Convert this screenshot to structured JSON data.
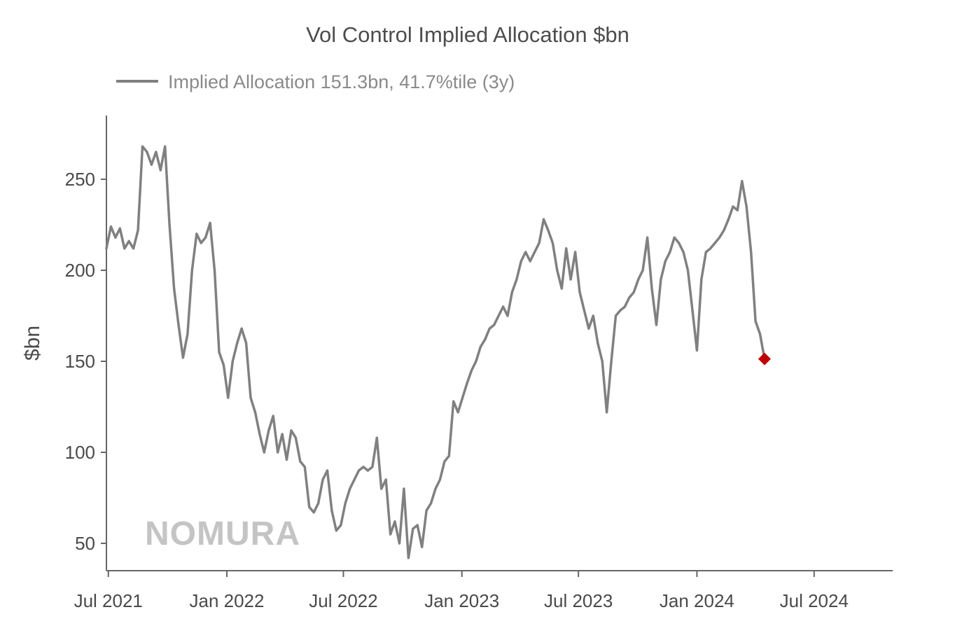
{
  "chart_data": {
    "type": "line",
    "title": "Vol Control Implied Allocation $bn",
    "ylabel": "$bn",
    "xlabel": "",
    "ylim": [
      35,
      285
    ],
    "yticks": [
      50,
      100,
      150,
      200,
      250
    ],
    "xlim": [
      "2021-06-28",
      "2024-10-31"
    ],
    "xticks": [
      {
        "date": "2021-07-01",
        "label": "Jul 2021"
      },
      {
        "date": "2022-01-01",
        "label": "Jan 2022"
      },
      {
        "date": "2022-07-01",
        "label": "Jul 2022"
      },
      {
        "date": "2023-01-01",
        "label": "Jan 2023"
      },
      {
        "date": "2023-07-01",
        "label": "Jul 2023"
      },
      {
        "date": "2024-01-01",
        "label": "Jan 2024"
      },
      {
        "date": "2024-07-01",
        "label": "Jul 2024"
      }
    ],
    "legend": {
      "position": "top-left"
    },
    "grid": false,
    "series": [
      {
        "name": "Implied Allocation 151.3bn, 41.7%tile (3y)",
        "color": "#808080",
        "points": [
          [
            "2021-06-28",
            212
          ],
          [
            "2021-07-05",
            224
          ],
          [
            "2021-07-12",
            218
          ],
          [
            "2021-07-19",
            223
          ],
          [
            "2021-07-26",
            212
          ],
          [
            "2021-08-02",
            216
          ],
          [
            "2021-08-09",
            212
          ],
          [
            "2021-08-16",
            222
          ],
          [
            "2021-08-23",
            268
          ],
          [
            "2021-08-30",
            265
          ],
          [
            "2021-09-06",
            258
          ],
          [
            "2021-09-13",
            265
          ],
          [
            "2021-09-20",
            255
          ],
          [
            "2021-09-27",
            268
          ],
          [
            "2021-10-04",
            225
          ],
          [
            "2021-10-11",
            190
          ],
          [
            "2021-10-18",
            170
          ],
          [
            "2021-10-25",
            152
          ],
          [
            "2021-11-01",
            165
          ],
          [
            "2021-11-08",
            200
          ],
          [
            "2021-11-15",
            220
          ],
          [
            "2021-11-22",
            215
          ],
          [
            "2021-11-29",
            218
          ],
          [
            "2021-12-06",
            226
          ],
          [
            "2021-12-13",
            200
          ],
          [
            "2021-12-20",
            155
          ],
          [
            "2021-12-27",
            148
          ],
          [
            "2022-01-03",
            130
          ],
          [
            "2022-01-10",
            150
          ],
          [
            "2022-01-17",
            160
          ],
          [
            "2022-01-24",
            168
          ],
          [
            "2022-01-31",
            160
          ],
          [
            "2022-02-07",
            130
          ],
          [
            "2022-02-14",
            122
          ],
          [
            "2022-02-21",
            110
          ],
          [
            "2022-02-28",
            100
          ],
          [
            "2022-03-07",
            112
          ],
          [
            "2022-03-14",
            120
          ],
          [
            "2022-03-21",
            100
          ],
          [
            "2022-03-28",
            110
          ],
          [
            "2022-04-04",
            96
          ],
          [
            "2022-04-11",
            112
          ],
          [
            "2022-04-18",
            108
          ],
          [
            "2022-04-25",
            95
          ],
          [
            "2022-05-02",
            92
          ],
          [
            "2022-05-09",
            70
          ],
          [
            "2022-05-16",
            67
          ],
          [
            "2022-05-23",
            72
          ],
          [
            "2022-05-30",
            85
          ],
          [
            "2022-06-06",
            90
          ],
          [
            "2022-06-13",
            68
          ],
          [
            "2022-06-20",
            57
          ],
          [
            "2022-06-27",
            60
          ],
          [
            "2022-07-04",
            72
          ],
          [
            "2022-07-11",
            80
          ],
          [
            "2022-07-18",
            85
          ],
          [
            "2022-07-25",
            90
          ],
          [
            "2022-08-01",
            92
          ],
          [
            "2022-08-08",
            90
          ],
          [
            "2022-08-15",
            92
          ],
          [
            "2022-08-22",
            108
          ],
          [
            "2022-08-29",
            80
          ],
          [
            "2022-09-05",
            85
          ],
          [
            "2022-09-12",
            55
          ],
          [
            "2022-09-19",
            62
          ],
          [
            "2022-09-26",
            50
          ],
          [
            "2022-10-03",
            80
          ],
          [
            "2022-10-10",
            42
          ],
          [
            "2022-10-17",
            58
          ],
          [
            "2022-10-24",
            60
          ],
          [
            "2022-10-31",
            48
          ],
          [
            "2022-11-07",
            68
          ],
          [
            "2022-11-14",
            72
          ],
          [
            "2022-11-21",
            80
          ],
          [
            "2022-11-28",
            85
          ],
          [
            "2022-12-05",
            95
          ],
          [
            "2022-12-12",
            98
          ],
          [
            "2022-12-19",
            128
          ],
          [
            "2022-12-26",
            122
          ],
          [
            "2023-01-02",
            130
          ],
          [
            "2023-01-09",
            138
          ],
          [
            "2023-01-16",
            145
          ],
          [
            "2023-01-23",
            150
          ],
          [
            "2023-01-30",
            158
          ],
          [
            "2023-02-06",
            162
          ],
          [
            "2023-02-13",
            168
          ],
          [
            "2023-02-20",
            170
          ],
          [
            "2023-02-27",
            175
          ],
          [
            "2023-03-06",
            180
          ],
          [
            "2023-03-13",
            175
          ],
          [
            "2023-03-20",
            188
          ],
          [
            "2023-03-27",
            195
          ],
          [
            "2023-04-03",
            205
          ],
          [
            "2023-04-10",
            210
          ],
          [
            "2023-04-17",
            205
          ],
          [
            "2023-04-24",
            210
          ],
          [
            "2023-05-01",
            215
          ],
          [
            "2023-05-08",
            228
          ],
          [
            "2023-05-15",
            222
          ],
          [
            "2023-05-22",
            215
          ],
          [
            "2023-05-29",
            200
          ],
          [
            "2023-06-05",
            190
          ],
          [
            "2023-06-12",
            212
          ],
          [
            "2023-06-19",
            195
          ],
          [
            "2023-06-26",
            210
          ],
          [
            "2023-07-03",
            188
          ],
          [
            "2023-07-10",
            178
          ],
          [
            "2023-07-17",
            168
          ],
          [
            "2023-07-24",
            175
          ],
          [
            "2023-07-31",
            160
          ],
          [
            "2023-08-07",
            150
          ],
          [
            "2023-08-14",
            122
          ],
          [
            "2023-08-21",
            150
          ],
          [
            "2023-08-28",
            175
          ],
          [
            "2023-09-04",
            178
          ],
          [
            "2023-09-11",
            180
          ],
          [
            "2023-09-18",
            185
          ],
          [
            "2023-09-25",
            188
          ],
          [
            "2023-10-02",
            195
          ],
          [
            "2023-10-09",
            200
          ],
          [
            "2023-10-16",
            218
          ],
          [
            "2023-10-23",
            190
          ],
          [
            "2023-10-30",
            170
          ],
          [
            "2023-11-06",
            195
          ],
          [
            "2023-11-13",
            205
          ],
          [
            "2023-11-20",
            210
          ],
          [
            "2023-11-27",
            218
          ],
          [
            "2023-12-04",
            215
          ],
          [
            "2023-12-11",
            210
          ],
          [
            "2023-12-18",
            200
          ],
          [
            "2023-12-25",
            178
          ],
          [
            "2024-01-01",
            156
          ],
          [
            "2024-01-08",
            195
          ],
          [
            "2024-01-15",
            210
          ],
          [
            "2024-01-22",
            212
          ],
          [
            "2024-01-29",
            215
          ],
          [
            "2024-02-05",
            218
          ],
          [
            "2024-02-12",
            222
          ],
          [
            "2024-02-19",
            228
          ],
          [
            "2024-02-26",
            235
          ],
          [
            "2024-03-04",
            233
          ],
          [
            "2024-03-11",
            249
          ],
          [
            "2024-03-18",
            235
          ],
          [
            "2024-03-25",
            210
          ],
          [
            "2024-04-01",
            172
          ],
          [
            "2024-04-08",
            165
          ],
          [
            "2024-04-15",
            151.3
          ]
        ]
      }
    ],
    "highlight_point": {
      "x": "2024-04-15",
      "y": 151.3,
      "color": "#c00000"
    },
    "watermark": "NOMURA"
  }
}
